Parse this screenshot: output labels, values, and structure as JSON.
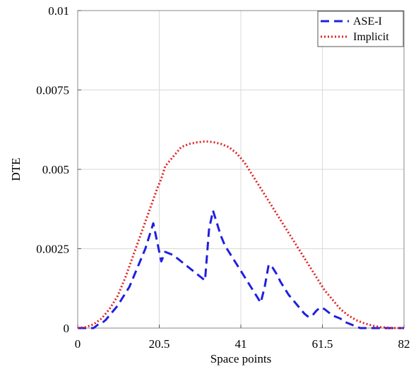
{
  "chart_data": {
    "type": "line",
    "title": "",
    "xlabel": "Space points",
    "ylabel": "DTE",
    "xlim": [
      0,
      82
    ],
    "ylim": [
      0,
      0.01
    ],
    "grid": true,
    "legend_position": "top-right",
    "x_ticks": [
      {
        "value": 0,
        "label": "0"
      },
      {
        "value": 20.5,
        "label": "20.5"
      },
      {
        "value": 41,
        "label": "41"
      },
      {
        "value": 61.5,
        "label": "61.5"
      },
      {
        "value": 82,
        "label": "82"
      }
    ],
    "y_ticks": [
      {
        "value": 0,
        "label": "0"
      },
      {
        "value": 0.0025,
        "label": "0.0025"
      },
      {
        "value": 0.005,
        "label": "0.005"
      },
      {
        "value": 0.0075,
        "label": "0.0075"
      },
      {
        "value": 0.01,
        "label": "0.01"
      }
    ],
    "series": [
      {
        "name": "ASE-I",
        "color": "#1f1fe0",
        "style": "dashed",
        "x": [
          0,
          1,
          2,
          3,
          4,
          5,
          6,
          7,
          8,
          9,
          10,
          11,
          12,
          13,
          14,
          15,
          16,
          17,
          18,
          19,
          20,
          21,
          22,
          23,
          24,
          25,
          26,
          27,
          28,
          29,
          30,
          31,
          32,
          33,
          34,
          35,
          36,
          37,
          38,
          39,
          40,
          41,
          42,
          43,
          44,
          45,
          46,
          47,
          48,
          49,
          50,
          51,
          52,
          53,
          54,
          55,
          56,
          57,
          58,
          59,
          60,
          61,
          62,
          63,
          64,
          65,
          66,
          67,
          68,
          69,
          70,
          71,
          72,
          73,
          74,
          75,
          76,
          77,
          78,
          79,
          80,
          81,
          82
        ],
        "values": [
          0,
          0,
          0,
          0,
          0,
          0.0001,
          0.00015,
          0.00025,
          0.0004,
          0.00055,
          0.0007,
          0.0009,
          0.0011,
          0.0013,
          0.0016,
          0.0019,
          0.0022,
          0.0025,
          0.0029,
          0.0033,
          0.0027,
          0.0021,
          0.0024,
          0.00235,
          0.0023,
          0.0022,
          0.0021,
          0.002,
          0.0019,
          0.0018,
          0.0017,
          0.0016,
          0.0015,
          0.0031,
          0.0037,
          0.0033,
          0.0029,
          0.0026,
          0.0024,
          0.0022,
          0.002,
          0.0018,
          0.0016,
          0.0014,
          0.0012,
          0.001,
          0.0008,
          0.0013,
          0.002,
          0.0019,
          0.0017,
          0.00145,
          0.00125,
          0.00105,
          0.0009,
          0.00075,
          0.0006,
          0.00045,
          0.00035,
          0.0004,
          0.00055,
          0.00065,
          0.0006,
          0.0005,
          0.0004,
          0.00035,
          0.0003,
          0.0002,
          0.00015,
          0.0001,
          5e-05,
          0,
          0,
          0,
          0,
          0,
          0,
          0,
          0,
          0,
          0,
          0,
          0
        ]
      },
      {
        "name": "Implicit",
        "color": "#e02020",
        "style": "dotted",
        "x": [
          0,
          2,
          4,
          6,
          8,
          10,
          12,
          14,
          16,
          18,
          20,
          21,
          22,
          24,
          26,
          28,
          30,
          32,
          34,
          36,
          38,
          40,
          42,
          44,
          46,
          48,
          50,
          52,
          54,
          56,
          58,
          60,
          62,
          64,
          66,
          68,
          70,
          72,
          74,
          76,
          78,
          80,
          82
        ],
        "values": [
          0,
          3e-05,
          0.00012,
          0.0003,
          0.0006,
          0.001,
          0.0016,
          0.0023,
          0.003,
          0.0037,
          0.0044,
          0.0047,
          0.0051,
          0.0054,
          0.0057,
          0.0058,
          0.00585,
          0.00588,
          0.00586,
          0.0058,
          0.0057,
          0.0055,
          0.0052,
          0.0048,
          0.0044,
          0.004,
          0.0036,
          0.0032,
          0.0028,
          0.0024,
          0.002,
          0.0016,
          0.0012,
          0.0009,
          0.0006,
          0.0004,
          0.00025,
          0.00015,
          8e-05,
          3e-05,
          1e-05,
          0,
          0
        ]
      }
    ]
  }
}
